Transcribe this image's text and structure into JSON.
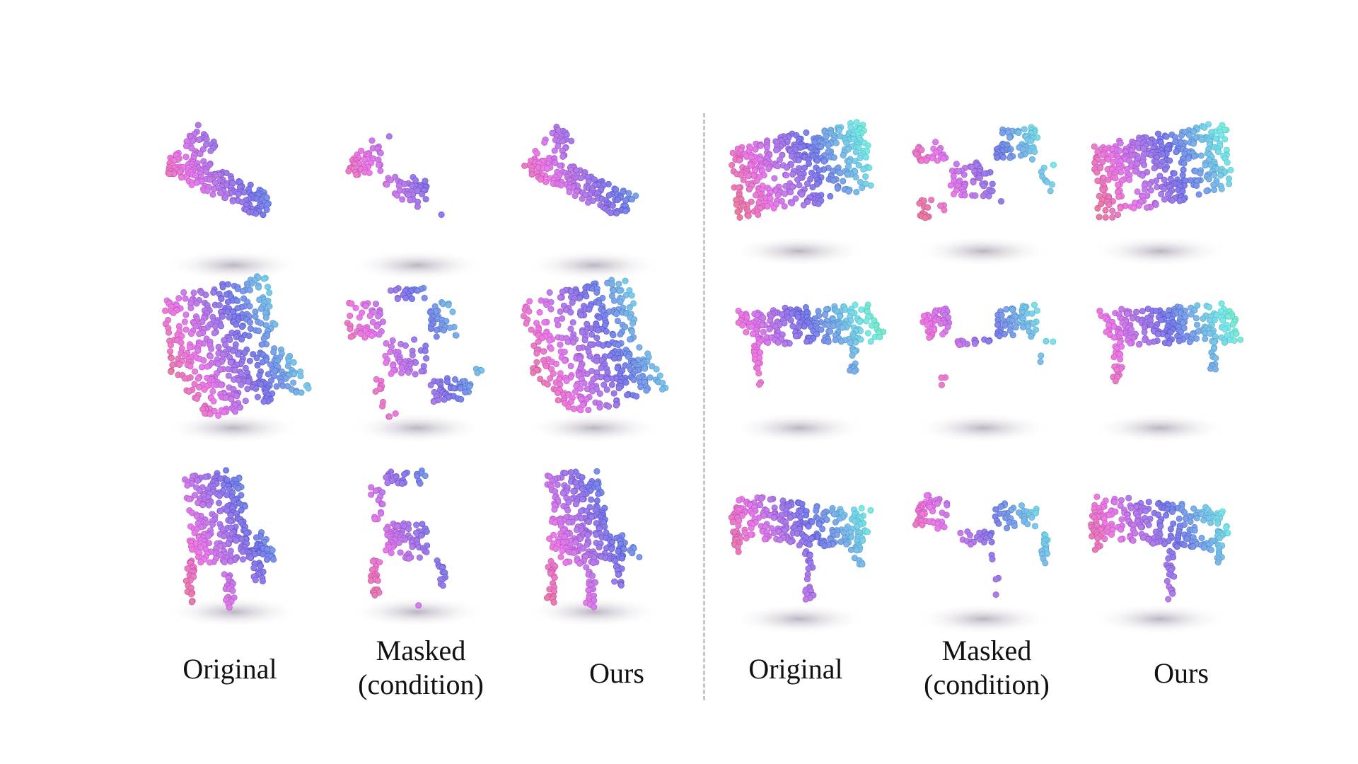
{
  "figure": {
    "groups": [
      {
        "captions": [
          {
            "lines": [
              "Original"
            ]
          },
          {
            "lines": [
              "Masked",
              "(condition)"
            ]
          },
          {
            "lines": [
              "Ours"
            ]
          }
        ],
        "rows": [
          {
            "object": "airplane"
          },
          {
            "object": "sofa"
          },
          {
            "object": "chair"
          }
        ]
      },
      {
        "captions": [
          {
            "lines": [
              "Original"
            ]
          },
          {
            "lines": [
              "Masked",
              "(condition)"
            ]
          },
          {
            "lines": [
              "Ours"
            ]
          }
        ],
        "rows": [
          {
            "object": "cabinet"
          },
          {
            "object": "table"
          },
          {
            "object": "table"
          }
        ]
      }
    ],
    "columns": [
      "original",
      "masked",
      "ours"
    ]
  }
}
